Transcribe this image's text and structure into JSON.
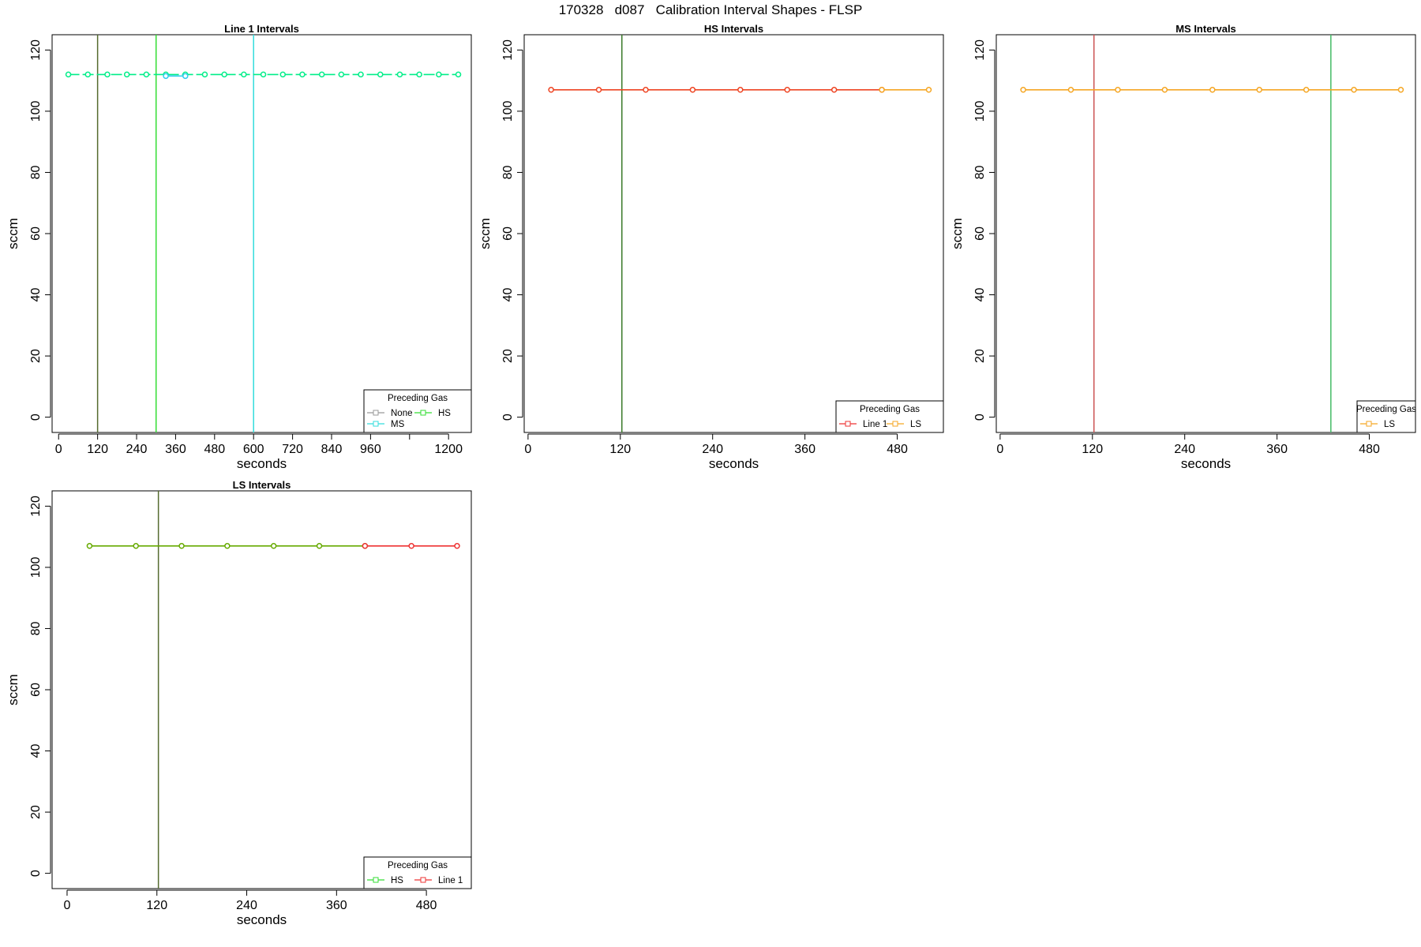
{
  "figure_title": "170328   d087   Calibration Interval Shapes - FLSP",
  "chart_data": [
    {
      "type": "line",
      "title": "Line 1 Intervals",
      "xlabel": "seconds",
      "ylabel": "sccm",
      "xlim": [
        -20,
        1270
      ],
      "ylim": [
        -5,
        125
      ],
      "xticks": [
        0,
        120,
        240,
        360,
        480,
        600,
        720,
        840,
        960,
        1080,
        1200
      ],
      "xtick_labels": [
        "0",
        "120",
        "240",
        "360",
        "480",
        "600",
        "720",
        "840",
        "960",
        "",
        "1200"
      ],
      "yticks": [
        0,
        20,
        40,
        60,
        80,
        100,
        120
      ],
      "ytick_labels": [
        "0",
        "20",
        "40",
        "60",
        "80",
        "100",
        "120"
      ],
      "vlines": [
        {
          "x": 120,
          "color": "#556B2F"
        },
        {
          "x": 300,
          "color": "#33DD33"
        },
        {
          "x": 600,
          "color": "#33DDDD"
        }
      ],
      "series": [
        {
          "color": "#00EE88",
          "x": [
            30,
            90,
            150,
            210,
            270,
            330,
            390,
            450,
            510,
            570,
            630,
            690,
            750,
            810,
            870,
            930,
            990,
            1050,
            1110,
            1170,
            1230
          ],
          "y": [
            112,
            112,
            112,
            112,
            112,
            112,
            112,
            112,
            112,
            112,
            112,
            112,
            112,
            112,
            112,
            112,
            112,
            112,
            112,
            112,
            112
          ],
          "dashed": true
        },
        {
          "color": "#33CCEE",
          "x": [
            330,
            390
          ],
          "y": [
            111.5,
            111.5
          ],
          "dashed": false
        }
      ],
      "legend": {
        "title": "Preceding Gas",
        "position": "bottom-right",
        "columns": 2,
        "items": [
          {
            "label": "None",
            "color": "#999999"
          },
          {
            "label": "HS",
            "color": "#33DD33"
          },
          {
            "label": "MS",
            "color": "#33DDDD"
          }
        ]
      }
    },
    {
      "type": "line",
      "title": "HS Intervals",
      "xlabel": "seconds",
      "ylabel": "sccm",
      "xlim": [
        -5,
        540
      ],
      "ylim": [
        -5,
        125
      ],
      "xticks": [
        0,
        120,
        240,
        360,
        480
      ],
      "xtick_labels": [
        "0",
        "120",
        "240",
        "360",
        "480"
      ],
      "yticks": [
        0,
        20,
        40,
        60,
        80,
        100,
        120
      ],
      "ytick_labels": [
        "0",
        "20",
        "40",
        "60",
        "80",
        "100",
        "120"
      ],
      "vlines": [
        {
          "x": 122,
          "color": "#3A7A2A"
        }
      ],
      "series": [
        {
          "color": "#EE4422",
          "x": [
            30,
            92,
            153,
            214,
            276,
            337,
            398,
            460
          ],
          "y": [
            107,
            107,
            107,
            107,
            107,
            107,
            107,
            107
          ],
          "dashed": false
        },
        {
          "color": "#F5A623",
          "x": [
            460,
            521
          ],
          "y": [
            107,
            107
          ],
          "dashed": false
        }
      ],
      "legend": {
        "title": "Preceding Gas",
        "position": "bottom-right",
        "columns": 2,
        "items": [
          {
            "label": "Line 1",
            "color": "#EE3333"
          },
          {
            "label": "LS",
            "color": "#F5A623"
          }
        ]
      }
    },
    {
      "type": "line",
      "title": "MS Intervals",
      "xlabel": "seconds",
      "ylabel": "sccm",
      "xlim": [
        -5,
        540
      ],
      "ylim": [
        -5,
        125
      ],
      "xticks": [
        0,
        120,
        240,
        360,
        480
      ],
      "xtick_labels": [
        "0",
        "120",
        "240",
        "360",
        "480"
      ],
      "yticks": [
        0,
        20,
        40,
        60,
        80,
        100,
        120
      ],
      "ytick_labels": [
        "0",
        "20",
        "40",
        "60",
        "80",
        "100",
        "120"
      ],
      "vlines": [
        {
          "x": 122,
          "color": "#CC5555"
        },
        {
          "x": 430,
          "color": "#44BB66"
        }
      ],
      "series": [
        {
          "color": "#F5A623",
          "x": [
            30,
            92,
            153,
            214,
            276,
            337,
            398,
            460,
            521
          ],
          "y": [
            107,
            107,
            107,
            107,
            107,
            107,
            107,
            107,
            107
          ],
          "dashed": false
        }
      ],
      "legend": {
        "title": "Preceding Gas",
        "position": "bottom-right",
        "columns": 1,
        "items": [
          {
            "label": "LS",
            "color": "#F5A623"
          }
        ]
      }
    },
    {
      "type": "line",
      "title": "LS Intervals",
      "xlabel": "seconds",
      "ylabel": "sccm",
      "xlim": [
        -20,
        540
      ],
      "ylim": [
        -5,
        125
      ],
      "xticks": [
        0,
        120,
        240,
        360,
        480
      ],
      "xtick_labels": [
        "0",
        "120",
        "240",
        "360",
        "480"
      ],
      "yticks": [
        0,
        20,
        40,
        60,
        80,
        100,
        120
      ],
      "ytick_labels": [
        "0",
        "20",
        "40",
        "60",
        "80",
        "100",
        "120"
      ],
      "vlines": [
        {
          "x": 122,
          "color": "#556B2F"
        }
      ],
      "series": [
        {
          "color": "#66AA00",
          "x": [
            30,
            92,
            153,
            214,
            276,
            337,
            398
          ],
          "y": [
            107,
            107,
            107,
            107,
            107,
            107,
            107
          ],
          "dashed": false
        },
        {
          "color": "#EE3333",
          "x": [
            398,
            460,
            521
          ],
          "y": [
            107,
            107,
            107
          ],
          "dashed": false
        }
      ],
      "legend": {
        "title": "Preceding Gas",
        "position": "bottom-right",
        "columns": 2,
        "items": [
          {
            "label": "HS",
            "color": "#33DD33"
          },
          {
            "label": "Line 1",
            "color": "#EE3333"
          }
        ]
      }
    }
  ]
}
